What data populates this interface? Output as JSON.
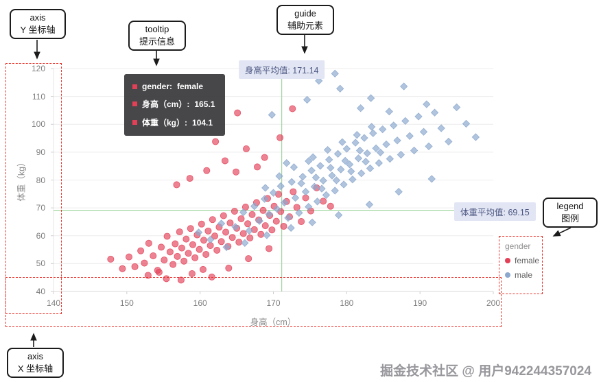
{
  "watermark": "掘金技术社区 @ 用户942244357024",
  "annotations": {
    "axis_y": {
      "line1": "axis",
      "line2": "Y 坐标轴"
    },
    "tooltip": {
      "line1": "tooltip",
      "line2": "提示信息"
    },
    "guide": {
      "line1": "guide",
      "line2": "辅助元素"
    },
    "legend": {
      "line1": "legend",
      "line2": "图例"
    },
    "axis_x": {
      "line1": "axis",
      "line2": "X 坐标轴"
    }
  },
  "tooltip": {
    "rows": [
      {
        "label": "gender:",
        "value": "female",
        "marker_color": "#e34057"
      },
      {
        "label": "身高（cm）:",
        "value": "165.1",
        "marker_color": "#e34057"
      },
      {
        "label": "体重（kg）:",
        "value": "104.1",
        "marker_color": "#e34057"
      }
    ]
  },
  "guides": {
    "x_mean": {
      "label": "身高平均值: 171.14",
      "value": 171.14
    },
    "y_mean": {
      "label": "体重平均值: 69.15",
      "value": 69.15
    }
  },
  "legend": {
    "title": "gender",
    "items": [
      {
        "label": "female",
        "color": "#e34057"
      },
      {
        "label": "male",
        "color": "#8ca8ce"
      }
    ]
  },
  "chart_data": {
    "type": "scatter",
    "title": "",
    "xlabel": "身高（cm）",
    "ylabel": "体重（kg）",
    "xlim": [
      140,
      200
    ],
    "ylim": [
      40,
      120
    ],
    "x_ticks": [
      140,
      150,
      160,
      170,
      180,
      190,
      200
    ],
    "y_ticks": [
      40,
      50,
      60,
      70,
      80,
      90,
      100,
      110,
      120
    ],
    "grid": "horizontal",
    "legend_position": "bottom-right",
    "guide_lines": {
      "x_mean": 171.14,
      "y_mean": 69.15
    },
    "series": [
      {
        "name": "female",
        "color": "#e34057",
        "shape": "circle",
        "points": [
          [
            150.3,
            52.4
          ],
          [
            151.1,
            48.9
          ],
          [
            151.9,
            54.6
          ],
          [
            152.4,
            50.2
          ],
          [
            153,
            57.3
          ],
          [
            153.6,
            52.8
          ],
          [
            154.2,
            47.6
          ],
          [
            154.7,
            55.9
          ],
          [
            155.1,
            51.3
          ],
          [
            155.5,
            59.8
          ],
          [
            155.9,
            54.2
          ],
          [
            156.3,
            49.7
          ],
          [
            156.6,
            57.1
          ],
          [
            156.9,
            52.6
          ],
          [
            157.2,
            61.4
          ],
          [
            157.5,
            55.6
          ],
          [
            157.8,
            50.9
          ],
          [
            158.1,
            58.8
          ],
          [
            158.4,
            53.7
          ],
          [
            158.7,
            62.6
          ],
          [
            159,
            56.8
          ],
          [
            159.3,
            52.1
          ],
          [
            159.6,
            60.3
          ],
          [
            159.9,
            55.1
          ],
          [
            160.2,
            64.2
          ],
          [
            160.5,
            58.4
          ],
          [
            160.8,
            53.3
          ],
          [
            161.1,
            61.7
          ],
          [
            161.4,
            56.5
          ],
          [
            161.7,
            65.8
          ],
          [
            162,
            59.9
          ],
          [
            162.3,
            54.8
          ],
          [
            162.6,
            63.1
          ],
          [
            162.9,
            57.9
          ],
          [
            163.2,
            67.2
          ],
          [
            163.5,
            61.3
          ],
          [
            163.8,
            56.2
          ],
          [
            164.1,
            64.6
          ],
          [
            164.4,
            59.4
          ],
          [
            164.7,
            68.8
          ],
          [
            165,
            62.7
          ],
          [
            165.3,
            57.7
          ],
          [
            165.6,
            66.1
          ],
          [
            165.9,
            60.8
          ],
          [
            166.2,
            70.3
          ],
          [
            166.5,
            64.3
          ],
          [
            166.8,
            59.2
          ],
          [
            167.1,
            67.6
          ],
          [
            167.4,
            62.2
          ],
          [
            167.7,
            71.9
          ],
          [
            168,
            65.7
          ],
          [
            168.3,
            60.5
          ],
          [
            168.6,
            69.1
          ],
          [
            168.9,
            63.6
          ],
          [
            169.2,
            73.4
          ],
          [
            169.5,
            67.3
          ],
          [
            169.8,
            62.1
          ],
          [
            170.1,
            70.6
          ],
          [
            170.4,
            65.2
          ],
          [
            170.7,
            74.9
          ],
          [
            171,
            68.7
          ],
          [
            171.4,
            63.4
          ],
          [
            171.8,
            72.3
          ],
          [
            172.2,
            66.8
          ],
          [
            172.7,
            75.8
          ],
          [
            173.2,
            70.2
          ],
          [
            173.8,
            65.1
          ],
          [
            174.4,
            73.6
          ],
          [
            175.1,
            68.9
          ],
          [
            175.9,
            77.2
          ],
          [
            176.8,
            72.4
          ],
          [
            177.8,
            70.6
          ],
          [
            165.1,
            104.1
          ],
          [
            172.6,
            105.6
          ],
          [
            163.4,
            86.9
          ],
          [
            160.9,
            83.4
          ],
          [
            166.3,
            91.2
          ],
          [
            168.8,
            88.1
          ],
          [
            158.6,
            80.6
          ],
          [
            162.1,
            93.8
          ],
          [
            156.8,
            78.3
          ],
          [
            170.9,
            95.2
          ],
          [
            164.9,
            82.9
          ],
          [
            167.8,
            84.7
          ],
          [
            147.8,
            51.6
          ],
          [
            149.4,
            48.2
          ],
          [
            152.9,
            45.8
          ],
          [
            155.4,
            44.6
          ],
          [
            158.9,
            46.4
          ],
          [
            161.6,
            45.2
          ],
          [
            163.9,
            48.4
          ],
          [
            166.6,
            51.8
          ],
          [
            154.4,
            46.9
          ],
          [
            160.4,
            47.9
          ],
          [
            157.4,
            44.1
          ],
          [
            169.4,
            55.4
          ]
        ]
      },
      {
        "name": "male",
        "color": "#8ca8ce",
        "shape": "diamond",
        "points": [
          [
            164.8,
            63.2
          ],
          [
            165.9,
            68.4
          ],
          [
            166.7,
            61.8
          ],
          [
            167.4,
            70.6
          ],
          [
            168.1,
            65.3
          ],
          [
            168.8,
            73.2
          ],
          [
            169.4,
            67.8
          ],
          [
            170,
            75.4
          ],
          [
            170.5,
            69.6
          ],
          [
            171,
            77.8
          ],
          [
            171.5,
            71.9
          ],
          [
            172,
            66.4
          ],
          [
            172.5,
            79.3
          ],
          [
            173,
            73.6
          ],
          [
            173.5,
            68.2
          ],
          [
            174,
            81.2
          ],
          [
            174.4,
            75.8
          ],
          [
            174.8,
            70.4
          ],
          [
            175.2,
            83.4
          ],
          [
            175.6,
            77.6
          ],
          [
            176,
            72.3
          ],
          [
            176.4,
            85.1
          ],
          [
            176.8,
            79.8
          ],
          [
            177.2,
            74.6
          ],
          [
            177.6,
            87.3
          ],
          [
            178,
            81.6
          ],
          [
            178.4,
            76.2
          ],
          [
            178.8,
            89.4
          ],
          [
            179.2,
            83.8
          ],
          [
            179.6,
            78.4
          ],
          [
            180,
            91.2
          ],
          [
            180.4,
            85.6
          ],
          [
            180.8,
            80.2
          ],
          [
            181.2,
            93.4
          ],
          [
            181.6,
            87.8
          ],
          [
            182,
            82.4
          ],
          [
            182.4,
            95.1
          ],
          [
            182.8,
            89.6
          ],
          [
            183.2,
            84.2
          ],
          [
            183.6,
            96.8
          ],
          [
            184,
            91.4
          ],
          [
            184.4,
            86.1
          ],
          [
            184.9,
            98.2
          ],
          [
            185.4,
            92.8
          ],
          [
            185.9,
            87.6
          ],
          [
            186.4,
            99.6
          ],
          [
            186.9,
            94.2
          ],
          [
            187.4,
            89.1
          ],
          [
            188,
            101.2
          ],
          [
            188.6,
            95.8
          ],
          [
            189.2,
            90.6
          ],
          [
            189.8,
            102.8
          ],
          [
            190.5,
            97.3
          ],
          [
            191.2,
            92.1
          ],
          [
            192,
            104.2
          ],
          [
            192.9,
            98.6
          ],
          [
            193.9,
            93.8
          ],
          [
            195,
            106.1
          ],
          [
            196.3,
            100.2
          ],
          [
            197.6,
            95.4
          ],
          [
            173.8,
            78.8
          ],
          [
            175.8,
            80.9
          ],
          [
            177.8,
            84.4
          ],
          [
            179.8,
            86.9
          ],
          [
            181.8,
            90.6
          ],
          [
            176.6,
            76.9
          ],
          [
            178.6,
            79.9
          ],
          [
            180.6,
            83.1
          ],
          [
            182.6,
            86.6
          ],
          [
            184.6,
            89.9
          ],
          [
            175.4,
            88.2
          ],
          [
            177.4,
            90.8
          ],
          [
            179.4,
            93.6
          ],
          [
            181.4,
            96.2
          ],
          [
            183.4,
            99.1
          ],
          [
            172.8,
            84.6
          ],
          [
            174.8,
            86.8
          ],
          [
            170.8,
            81.4
          ],
          [
            168.9,
            77.2
          ],
          [
            171.8,
            86.1
          ],
          [
            176.2,
            115.6
          ],
          [
            179.1,
            112.8
          ],
          [
            183.3,
            109.4
          ],
          [
            187.8,
            113.6
          ],
          [
            190.9,
            107.2
          ],
          [
            174.6,
            108.8
          ],
          [
            181.9,
            105.8
          ],
          [
            169.8,
            103.4
          ],
          [
            178.4,
            118.2
          ],
          [
            185.8,
            104.6
          ],
          [
            161.4,
            58.6
          ],
          [
            163.6,
            55.9
          ],
          [
            166.1,
            57.4
          ],
          [
            169.1,
            60.2
          ],
          [
            172.4,
            62.8
          ],
          [
            175.3,
            64.8
          ],
          [
            178.9,
            67.4
          ],
          [
            183.1,
            71.2
          ],
          [
            187.1,
            75.8
          ],
          [
            191.6,
            80.4
          ],
          [
            159.8,
            61.2
          ],
          [
            162.9,
            64.4
          ]
        ]
      }
    ]
  }
}
